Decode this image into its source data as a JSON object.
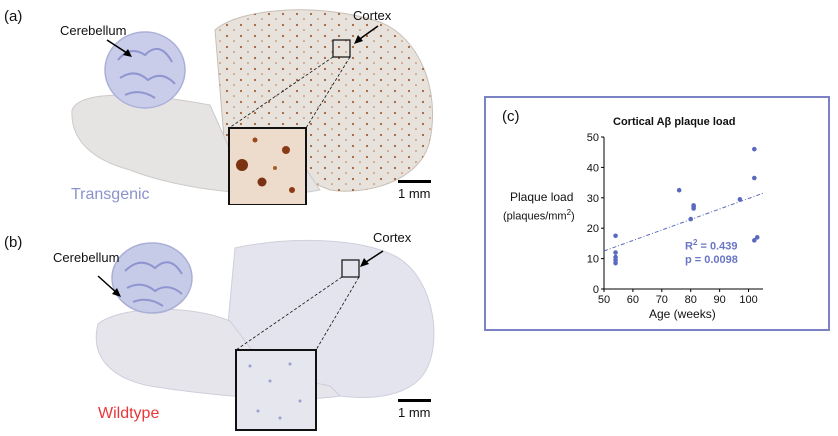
{
  "panel_a": {
    "label": "(a)",
    "cerebellum_label": "Cerebellum",
    "cortex_label": "Cortex",
    "condition": "Transgenic",
    "condition_color": "#8c92cc",
    "scale_label": "1 mm"
  },
  "panel_b": {
    "label": "(b)",
    "cerebellum_label": "Cerebellum",
    "cortex_label": "Cortex",
    "condition": "Wildtype",
    "condition_color": "#e8373a",
    "scale_label": "1 mm"
  },
  "panel_c": {
    "label": "(c)",
    "frame_color": "#7b82c6",
    "chart_data": {
      "type": "scatter",
      "title": "Cortical Aβ plaque load",
      "xlabel": "Age (weeks)",
      "ylabel_line1": "Plaque load",
      "ylabel_line2_base": "(plaques/mm",
      "ylabel_line2_sup": "2",
      "ylabel_line2_close": ")",
      "xlim": [
        50,
        105
      ],
      "ylim": [
        0,
        50
      ],
      "xticks": [
        50,
        60,
        70,
        80,
        90,
        100
      ],
      "yticks": [
        0,
        10,
        20,
        30,
        40,
        50
      ],
      "points": [
        {
          "x": 54,
          "y": 17.5
        },
        {
          "x": 54,
          "y": 12
        },
        {
          "x": 54,
          "y": 10.5
        },
        {
          "x": 54,
          "y": 9.5
        },
        {
          "x": 54,
          "y": 8.5
        },
        {
          "x": 76,
          "y": 32.5
        },
        {
          "x": 80,
          "y": 23
        },
        {
          "x": 81,
          "y": 27.5
        },
        {
          "x": 81,
          "y": 27
        },
        {
          "x": 81,
          "y": 26.5
        },
        {
          "x": 97,
          "y": 29.5
        },
        {
          "x": 102,
          "y": 46
        },
        {
          "x": 102,
          "y": 36.5
        },
        {
          "x": 102,
          "y": 16
        },
        {
          "x": 103,
          "y": 17
        }
      ],
      "fit_line": {
        "x1": 50,
        "y1": 12.5,
        "x2": 105,
        "y2": 31.5
      },
      "stat_r2_base": "R",
      "stat_r2_sup": "2",
      "stat_r2_rest": " = 0.439",
      "stat_p": "p = 0.0098",
      "point_color": "#5b6abf",
      "stat_color": "#6b76c4"
    }
  }
}
